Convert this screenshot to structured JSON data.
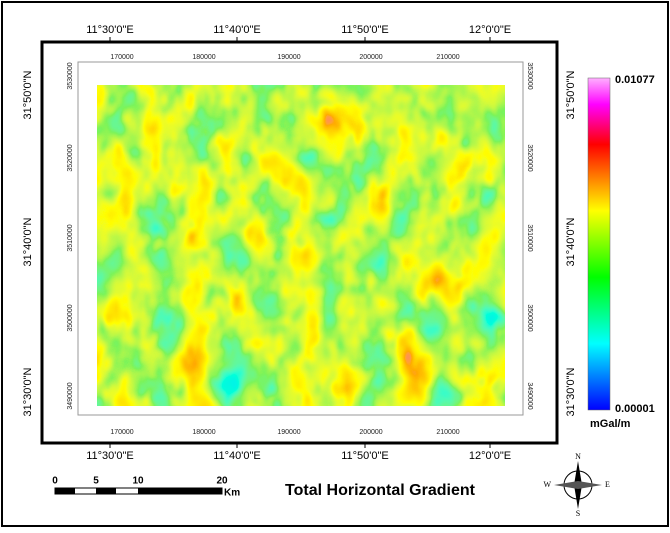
{
  "title": "Total Horizontal Gradient",
  "graticule": {
    "longitude_labels": [
      "11°30'0\"E",
      "11°40'0\"E",
      "11°50'0\"E",
      "12°0'0\"E"
    ],
    "latitude_labels": [
      "31°50'0\"N",
      "31°40'0\"N",
      "31°30'0\"N"
    ]
  },
  "grid": {
    "easting_labels": [
      "170000",
      "180000",
      "190000",
      "200000",
      "210000"
    ],
    "northing_labels": [
      "3530000",
      "3520000",
      "3510000",
      "3500000",
      "3490000"
    ]
  },
  "legend": {
    "max": "0.01077",
    "min": "0.00001",
    "unit": "mGal/m"
  },
  "scale_bar": {
    "labels": [
      "0",
      "5",
      "10",
      "20"
    ],
    "unit": "Km"
  },
  "compass": {
    "north": "N",
    "south": "S",
    "east": "E",
    "west": "W"
  }
}
